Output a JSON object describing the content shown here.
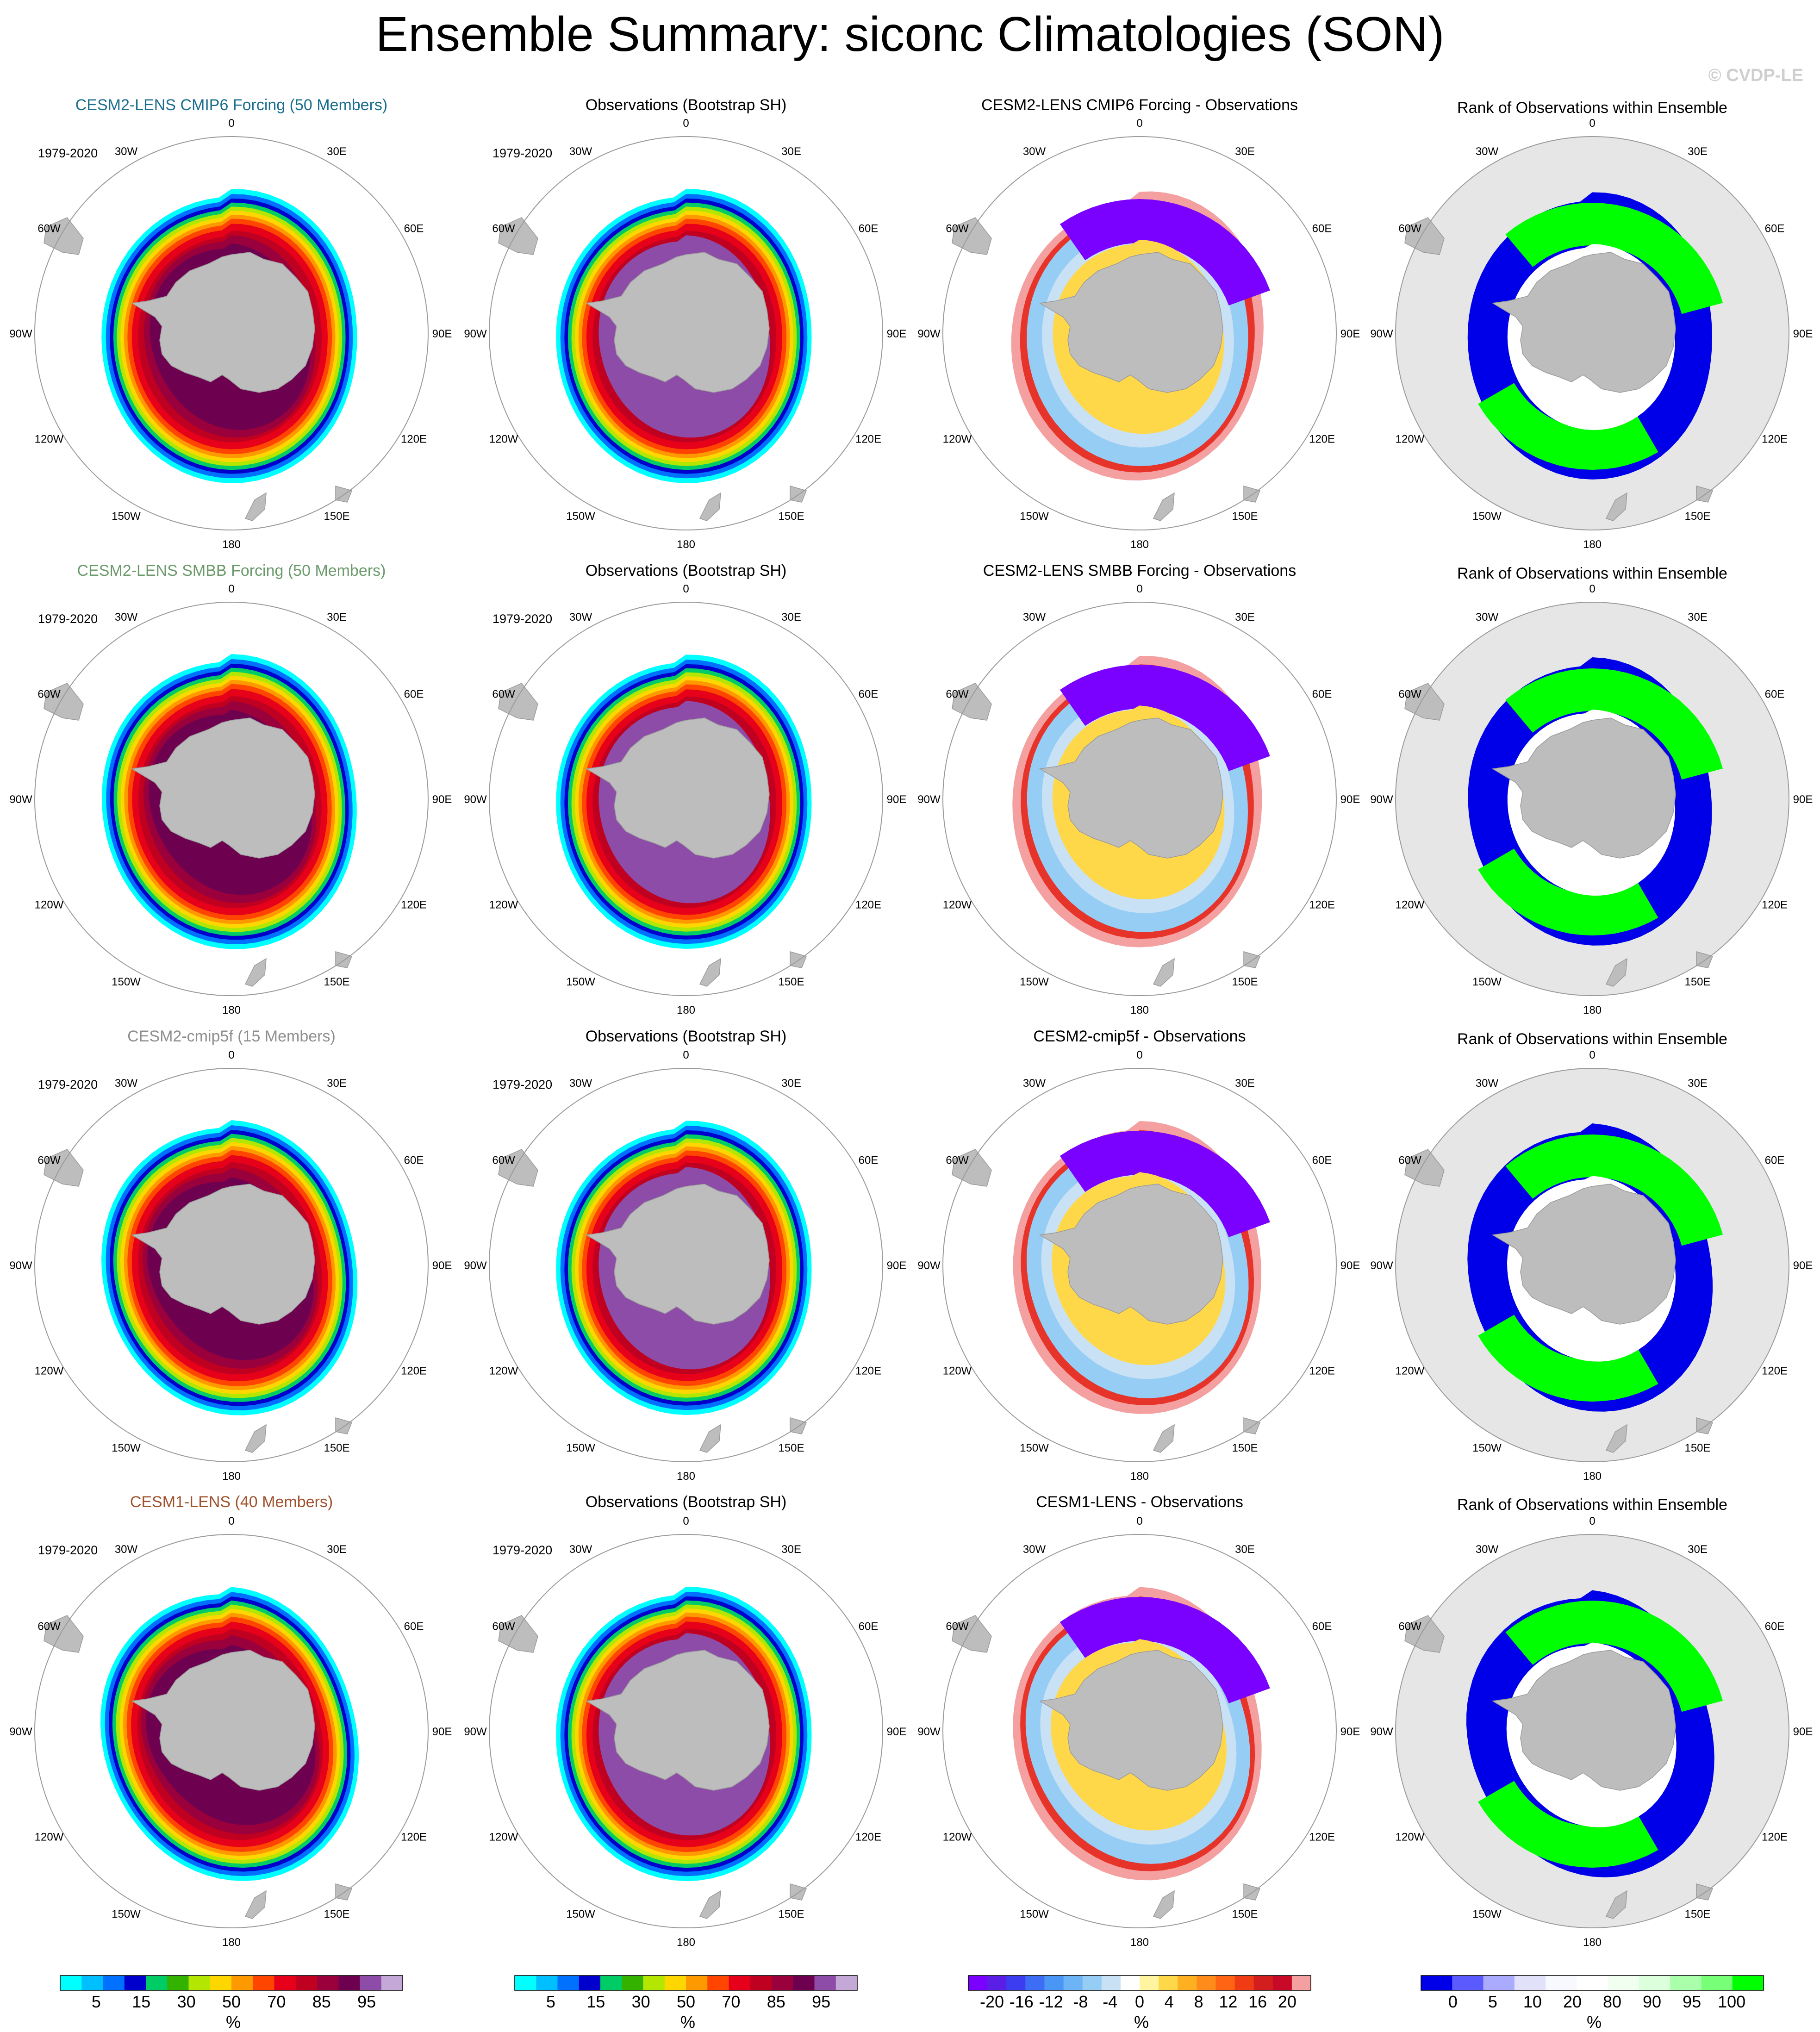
{
  "title": "Ensemble Summary: siconc Climatologies (SON)",
  "watermark": "© CVDP-LE",
  "period": "1979-2020",
  "lon_labels": [
    "0",
    "30E",
    "60E",
    "90E",
    "120E",
    "150E",
    "180",
    "150W",
    "120W",
    "90W",
    "60W",
    "30W"
  ],
  "colors": {
    "land": "#bdbdbd",
    "map_outline": "#9a9a9a",
    "rank_background": "#e6e6e6",
    "rank_high": "#00ff00",
    "rank_low": "#0000e8"
  },
  "rows": [
    {
      "model": "CESM2-LENS CMIP6 Forcing (50 Members)",
      "model_color": "#1b6e8e",
      "obs": "Observations (Bootstrap SH)",
      "diff": "CESM2-LENS CMIP6 Forcing - Observations",
      "rank": "Rank of Observations within Ensemble"
    },
    {
      "model": "CESM2-LENS SMBB Forcing (50 Members)",
      "model_color": "#6b9a6b",
      "obs": "Observations (Bootstrap SH)",
      "diff": "CESM2-LENS SMBB Forcing - Observations",
      "rank": "Rank of Observations within Ensemble"
    },
    {
      "model": "CESM2-cmip5f (15 Members)",
      "model_color": "#8e8e8e",
      "obs": "Observations (Bootstrap SH)",
      "diff": "CESM2-cmip5f - Observations",
      "rank": "Rank of Observations within Ensemble"
    },
    {
      "model": "CESM1-LENS (40 Members)",
      "model_color": "#a0522d",
      "obs": "Observations (Bootstrap SH)",
      "diff": "CESM1-LENS - Observations",
      "rank": "Rank of Observations within Ensemble"
    }
  ],
  "colorbars": [
    {
      "unit": "%",
      "colors": [
        "#00ffff",
        "#00bfff",
        "#0070ff",
        "#0000cd",
        "#00cc66",
        "#33b300",
        "#b3e600",
        "#ffd700",
        "#ff9900",
        "#ff4500",
        "#e6001a",
        "#c00020",
        "#99003c",
        "#6e0050",
        "#8c4ca8",
        "#c4a8d8"
      ],
      "labels": [
        "5",
        "15",
        "30",
        "50",
        "70",
        "85",
        "95"
      ]
    },
    {
      "unit": "%",
      "colors": [
        "#00ffff",
        "#00bfff",
        "#0070ff",
        "#0000cd",
        "#00cc66",
        "#33b300",
        "#b3e600",
        "#ffd700",
        "#ff9900",
        "#ff4500",
        "#e6001a",
        "#c00020",
        "#99003c",
        "#6e0050",
        "#8c4ca8",
        "#c4a8d8"
      ],
      "labels": [
        "5",
        "15",
        "30",
        "50",
        "70",
        "85",
        "95"
      ]
    },
    {
      "unit": "%",
      "colors": [
        "#7a00ff",
        "#5a1ee6",
        "#3c3cf0",
        "#3d6cf5",
        "#4a96f5",
        "#6cb4f5",
        "#96cdf5",
        "#c8e1f5",
        "#ffffff",
        "#fff5a0",
        "#ffd84a",
        "#ffb020",
        "#ff8c1a",
        "#ff6414",
        "#f03c14",
        "#d21e1e",
        "#c80a28",
        "#f5a0a0"
      ],
      "labels": [
        "-20",
        "-16",
        "-12",
        "-8",
        "-4",
        "0",
        "4",
        "8",
        "12",
        "16",
        "20"
      ]
    },
    {
      "unit": "%",
      "colors": [
        "#0000e8",
        "#5a5aff",
        "#aaaaff",
        "#e1e1fa",
        "#f8f8ff",
        "#ffffff",
        "#f0fff0",
        "#dcffdc",
        "#aaffaa",
        "#78ff78",
        "#00ff00"
      ],
      "labels": [
        "0",
        "5",
        "10",
        "20",
        "80",
        "90",
        "95",
        "100"
      ]
    }
  ]
}
